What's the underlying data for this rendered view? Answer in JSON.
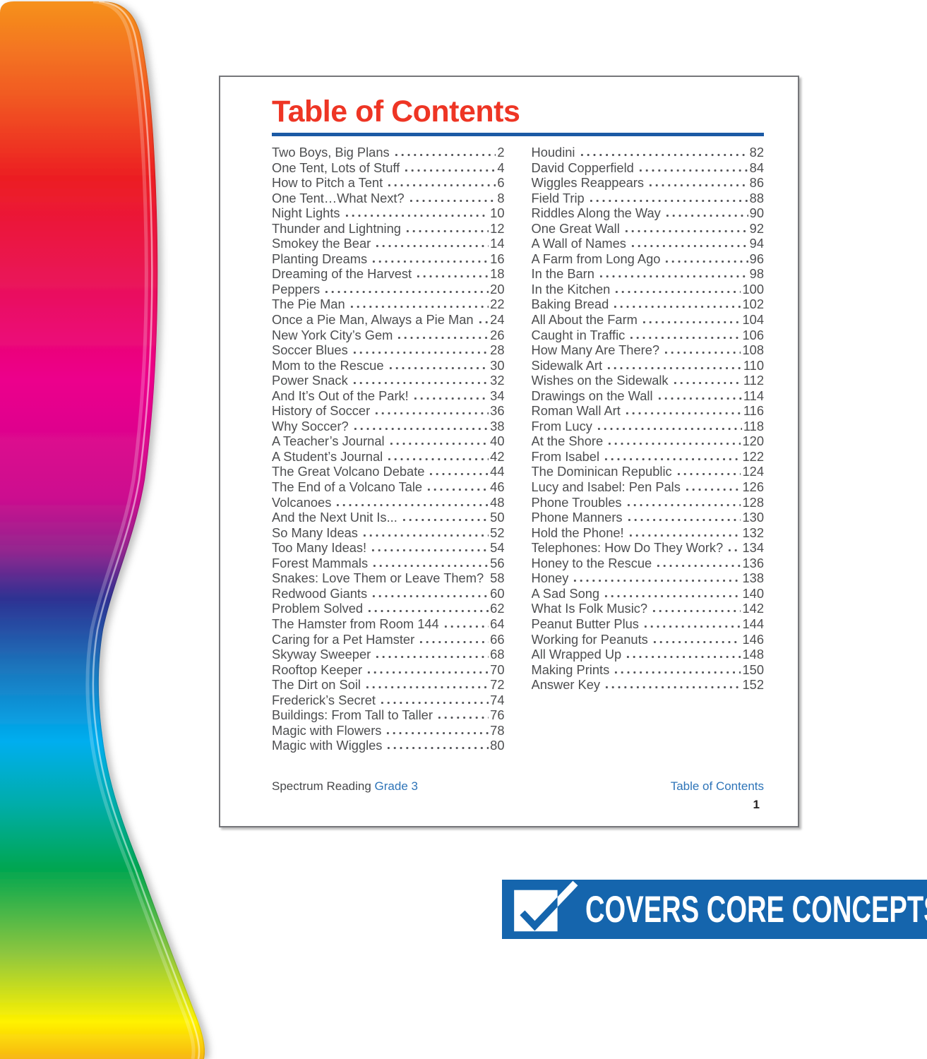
{
  "page": {
    "title": "Table of Contents",
    "footer_left_book": "Spectrum Reading ",
    "footer_left_grade": "Grade 3",
    "footer_right": "Table of Contents",
    "page_number": "1"
  },
  "toc": {
    "left": [
      {
        "t": "Two Boys, Big Plans",
        "p": "2"
      },
      {
        "t": "One Tent, Lots of Stuff",
        "p": "4"
      },
      {
        "t": "How to Pitch a Tent",
        "p": "6"
      },
      {
        "t": "One Tent…What Next?",
        "p": "8"
      },
      {
        "t": "Night Lights",
        "p": "10"
      },
      {
        "t": "Thunder and Lightning",
        "p": "12"
      },
      {
        "t": "Smokey the Bear",
        "p": "14"
      },
      {
        "t": "Planting Dreams",
        "p": "16"
      },
      {
        "t": "Dreaming of the Harvest",
        "p": "18"
      },
      {
        "t": "Peppers",
        "p": "20"
      },
      {
        "t": "The Pie Man",
        "p": "22"
      },
      {
        "t": "Once a Pie Man, Always a Pie Man",
        "p": "24"
      },
      {
        "t": "New York City’s Gem",
        "p": "26"
      },
      {
        "t": "Soccer Blues",
        "p": "28"
      },
      {
        "t": "Mom to the Rescue",
        "p": "30"
      },
      {
        "t": "Power Snack",
        "p": "32"
      },
      {
        "t": "And It’s Out of the Park!",
        "p": "34"
      },
      {
        "t": "History of Soccer",
        "p": "36"
      },
      {
        "t": "Why Soccer?",
        "p": "38"
      },
      {
        "t": "A Teacher’s Journal",
        "p": "40"
      },
      {
        "t": "A Student’s Journal",
        "p": "42"
      },
      {
        "t": "The Great Volcano Debate",
        "p": "44"
      },
      {
        "t": "The End of a Volcano Tale",
        "p": "46"
      },
      {
        "t": "Volcanoes",
        "p": "48"
      },
      {
        "t": "And the Next Unit Is...",
        "p": "50"
      },
      {
        "t": "So Many Ideas",
        "p": "52"
      },
      {
        "t": "Too Many Ideas!",
        "p": "54"
      },
      {
        "t": "Forest Mammals",
        "p": "56"
      },
      {
        "t": "Snakes: Love Them or Leave Them?",
        "p": "58"
      },
      {
        "t": "Redwood Giants",
        "p": "60"
      },
      {
        "t": "Problem Solved",
        "p": "62"
      },
      {
        "t": "The Hamster from Room 144",
        "p": "64"
      },
      {
        "t": "Caring for a Pet Hamster",
        "p": "66"
      },
      {
        "t": "Skyway Sweeper",
        "p": "68"
      },
      {
        "t": "Rooftop Keeper",
        "p": "70"
      },
      {
        "t": "The Dirt on Soil",
        "p": "72"
      },
      {
        "t": "Frederick’s Secret",
        "p": "74"
      },
      {
        "t": "Buildings: From Tall to Taller",
        "p": "76"
      },
      {
        "t": "Magic with Flowers",
        "p": "78"
      },
      {
        "t": "Magic with Wiggles",
        "p": "80"
      }
    ],
    "right": [
      {
        "t": "Houdini",
        "p": "82"
      },
      {
        "t": "David Copperfield",
        "p": "84"
      },
      {
        "t": "Wiggles Reappears",
        "p": "86"
      },
      {
        "t": "Field Trip",
        "p": "88"
      },
      {
        "t": "Riddles Along the Way",
        "p": "90"
      },
      {
        "t": "One Great Wall",
        "p": "92"
      },
      {
        "t": "A Wall of Names",
        "p": "94"
      },
      {
        "t": "A Farm from Long Ago",
        "p": "96"
      },
      {
        "t": "In the Barn",
        "p": "98"
      },
      {
        "t": "In the Kitchen",
        "p": "100"
      },
      {
        "t": "Baking Bread",
        "p": "102"
      },
      {
        "t": "All About the Farm",
        "p": "104"
      },
      {
        "t": "Caught in Traffic",
        "p": "106"
      },
      {
        "t": "How Many Are There?",
        "p": "108"
      },
      {
        "t": "Sidewalk Art",
        "p": "110"
      },
      {
        "t": "Wishes on the Sidewalk",
        "p": "112"
      },
      {
        "t": "Drawings on the Wall",
        "p": "114"
      },
      {
        "t": "Roman Wall Art",
        "p": "116"
      },
      {
        "t": "From Lucy",
        "p": "118"
      },
      {
        "t": "At the Shore",
        "p": "120"
      },
      {
        "t": "From Isabel",
        "p": "122"
      },
      {
        "t": "The Dominican Republic",
        "p": "124"
      },
      {
        "t": "Lucy and Isabel: Pen Pals",
        "p": "126"
      },
      {
        "t": "Phone Troubles",
        "p": "128"
      },
      {
        "t": "Phone Manners",
        "p": "130"
      },
      {
        "t": "Hold the Phone!",
        "p": "132"
      },
      {
        "t": "Telephones: How Do They Work?",
        "p": "134"
      },
      {
        "t": "Honey to the Rescue",
        "p": "136"
      },
      {
        "t": "Honey",
        "p": "138"
      },
      {
        "t": "A Sad Song",
        "p": "140"
      },
      {
        "t": "What Is Folk Music?",
        "p": "142"
      },
      {
        "t": "Peanut Butter Plus",
        "p": "144"
      },
      {
        "t": "Working for Peanuts",
        "p": "146"
      },
      {
        "t": "All Wrapped Up",
        "p": "148"
      },
      {
        "t": "Making Prints",
        "p": "150"
      },
      {
        "t": "Answer Key",
        "p": "152"
      }
    ]
  },
  "banner": {
    "label": "COVERS CORE CONCEPTS",
    "icon": "checkmark-icon"
  },
  "colors": {
    "c-title": "#ee3524",
    "c-rule": "#1b5aa5",
    "c-text": "#4d4e50",
    "c-dots": "#55565a",
    "c-footerdark": "#47484a",
    "c-footerblue": "#2e74b8",
    "c-banner": "#1565ad"
  }
}
